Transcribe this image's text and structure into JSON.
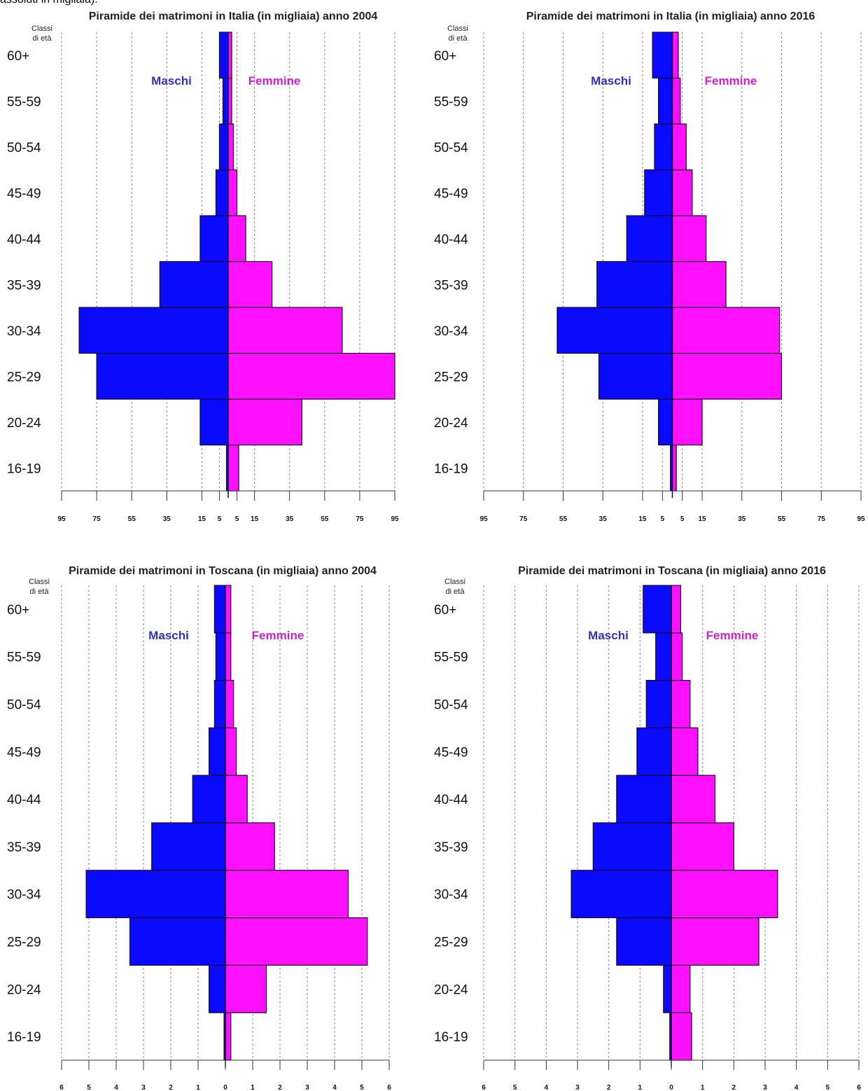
{
  "caption": "assoluti in migliaia).",
  "colors": {
    "maschi": "#0a0aff",
    "femmine": "#ff10ff",
    "bar_edge": "#1a0a2a",
    "grid": "#888888",
    "legend_maschi": "#3030c0",
    "legend_femmine": "#d020d0"
  },
  "chart_data": [
    {
      "type": "bar",
      "orientation": "horizontal-pyramid",
      "title": "Piramide dei matrimoni in Italia (in migliaia) anno 2004",
      "y_axis_title": "Classi di età",
      "y_axis_title_lines": [
        "Classi",
        "di età"
      ],
      "categories": [
        "16-19",
        "20-24",
        "25-29",
        "30-34",
        "35-39",
        "40-44",
        "45-49",
        "50-54",
        "55-59",
        "60+"
      ],
      "series": [
        {
          "name": "Maschi",
          "side": "left",
          "values": [
            1,
            16,
            75,
            85,
            39,
            16,
            7,
            5,
            3,
            5
          ]
        },
        {
          "name": "Femmine",
          "side": "right",
          "values": [
            6,
            42,
            95,
            65,
            25,
            10,
            5,
            3,
            2,
            2
          ]
        }
      ],
      "xlim": [
        -95,
        95
      ],
      "x_tick_values": [
        -95,
        -75,
        -55,
        -35,
        -15,
        -5,
        5,
        15,
        35,
        55,
        75,
        95
      ],
      "x_tick_labels": [
        "95",
        "75",
        "55",
        "35",
        "15",
        "5",
        "5",
        "15",
        "35",
        "55",
        "75",
        "95"
      ],
      "grid": true
    },
    {
      "type": "bar",
      "orientation": "horizontal-pyramid",
      "title": "Piramide dei matrimoni in Italia (in migliaia) anno 2016",
      "y_axis_title": "Classi di età",
      "y_axis_title_lines": [
        "Classi",
        "di età"
      ],
      "categories": [
        "16-19",
        "20-24",
        "25-29",
        "30-34",
        "35-39",
        "40-44",
        "45-49",
        "50-54",
        "55-59",
        "60+"
      ],
      "series": [
        {
          "name": "Maschi",
          "side": "left",
          "values": [
            1,
            7,
            37,
            58,
            38,
            23,
            14,
            9,
            7,
            10
          ]
        },
        {
          "name": "Femmine",
          "side": "right",
          "values": [
            2,
            15,
            55,
            54,
            27,
            17,
            10,
            7,
            4,
            3
          ]
        }
      ],
      "xlim": [
        -95,
        95
      ],
      "x_tick_values": [
        -95,
        -75,
        -55,
        -35,
        -15,
        -5,
        5,
        15,
        35,
        55,
        75,
        95
      ],
      "x_tick_labels": [
        "95",
        "75",
        "55",
        "35",
        "15",
        "5",
        "5",
        "15",
        "35",
        "55",
        "75",
        "95"
      ],
      "grid": true
    },
    {
      "type": "bar",
      "orientation": "horizontal-pyramid",
      "title": "Piramide dei matrimoni in Toscana (in migliaia) anno 2004",
      "y_axis_title": "Classi di età",
      "y_axis_title_lines": [
        "Classi",
        "di età"
      ],
      "categories": [
        "16-19",
        "20-24",
        "25-29",
        "30-34",
        "35-39",
        "40-44",
        "45-49",
        "50-54",
        "55-59",
        "60+"
      ],
      "series": [
        {
          "name": "Maschi",
          "side": "left",
          "values": [
            0.05,
            0.6,
            3.5,
            5.1,
            2.7,
            1.2,
            0.6,
            0.4,
            0.35,
            0.4
          ]
        },
        {
          "name": "Femmine",
          "side": "right",
          "values": [
            0.2,
            1.5,
            5.2,
            4.5,
            1.8,
            0.8,
            0.4,
            0.3,
            0.2,
            0.2
          ]
        }
      ],
      "xlim": [
        -6,
        6
      ],
      "x_tick_values": [
        -6,
        -5,
        -4,
        -3,
        -2,
        -1,
        0,
        1,
        2,
        3,
        4,
        5,
        6
      ],
      "x_tick_labels": [
        "6",
        "5",
        "4",
        "3",
        "2",
        "1",
        "0",
        "1",
        "2",
        "3",
        "4",
        "5",
        "6"
      ],
      "grid": true
    },
    {
      "type": "bar",
      "orientation": "horizontal-pyramid",
      "title": "Piramide dei matrimoni in Toscana (in migliaia) anno 2016",
      "y_axis_title": "Classi di età",
      "y_axis_title_lines": [
        "Classi",
        "di età"
      ],
      "categories": [
        "16-19",
        "20-24",
        "25-29",
        "30-34",
        "35-39",
        "40-44",
        "45-49",
        "50-54",
        "55-59",
        "60+"
      ],
      "series": [
        {
          "name": "Maschi",
          "side": "left",
          "values": [
            0.05,
            0.25,
            1.75,
            3.2,
            2.5,
            1.75,
            1.1,
            0.8,
            0.5,
            0.9
          ]
        },
        {
          "name": "Femmine",
          "side": "right",
          "values": [
            0.65,
            0.6,
            2.8,
            3.4,
            2.0,
            1.4,
            0.85,
            0.6,
            0.35,
            0.3
          ]
        }
      ],
      "xlim": [
        -6,
        6
      ],
      "x_tick_values": [
        -6,
        -5,
        -4,
        -3,
        -2,
        -1,
        0,
        1,
        2,
        3,
        4,
        5,
        6
      ],
      "x_tick_labels": [
        "6",
        "5",
        "4",
        "3",
        "2",
        "1",
        "0",
        "1",
        "2",
        "3",
        "4",
        "5",
        "6"
      ],
      "grid": true
    }
  ]
}
